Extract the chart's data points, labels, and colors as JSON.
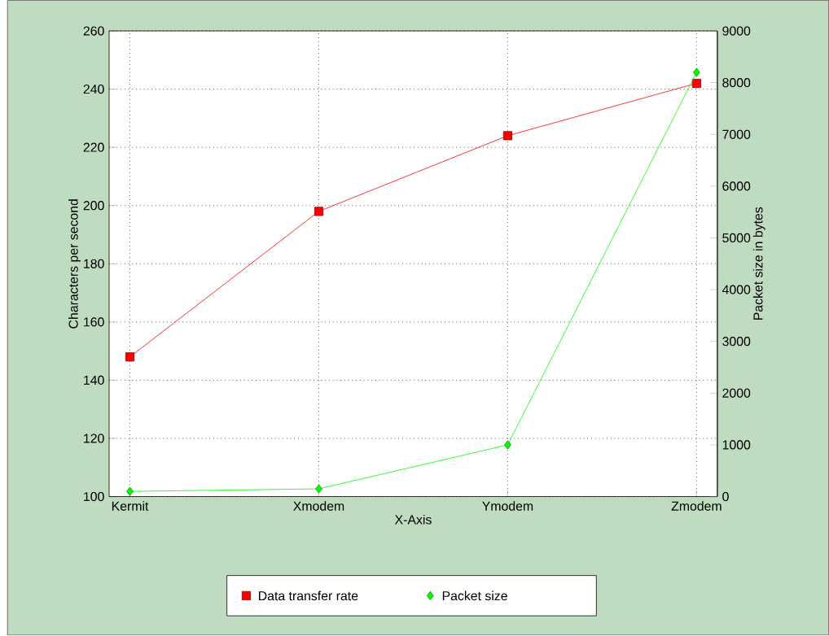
{
  "chart_data": {
    "type": "line",
    "xlabel": "X-Axis",
    "ylabel": "Characters per second",
    "y2label": "Packet size in bytes",
    "categories": [
      "Kermit",
      "Xmodem",
      "Ymodem",
      "Zmodem"
    ],
    "series": [
      {
        "name": "Data transfer rate",
        "color": "#ff0000",
        "marker": "square",
        "values": [
          148,
          198,
          224,
          242
        ]
      },
      {
        "name": "Packet size",
        "color": "#00ff00",
        "marker": "diamond",
        "axis": "y2",
        "values": [
          100,
          150,
          1000,
          8200
        ]
      }
    ],
    "ylim": [
      100,
      260
    ],
    "yticks": [
      100,
      120,
      140,
      160,
      180,
      200,
      220,
      240,
      260
    ],
    "y2lim": [
      0,
      9000
    ],
    "y2ticks": [
      0,
      1000,
      2000,
      3000,
      4000,
      5000,
      6000,
      7000,
      8000,
      9000
    ],
    "grid": true,
    "legend": "bottom",
    "line_style": "solid"
  }
}
